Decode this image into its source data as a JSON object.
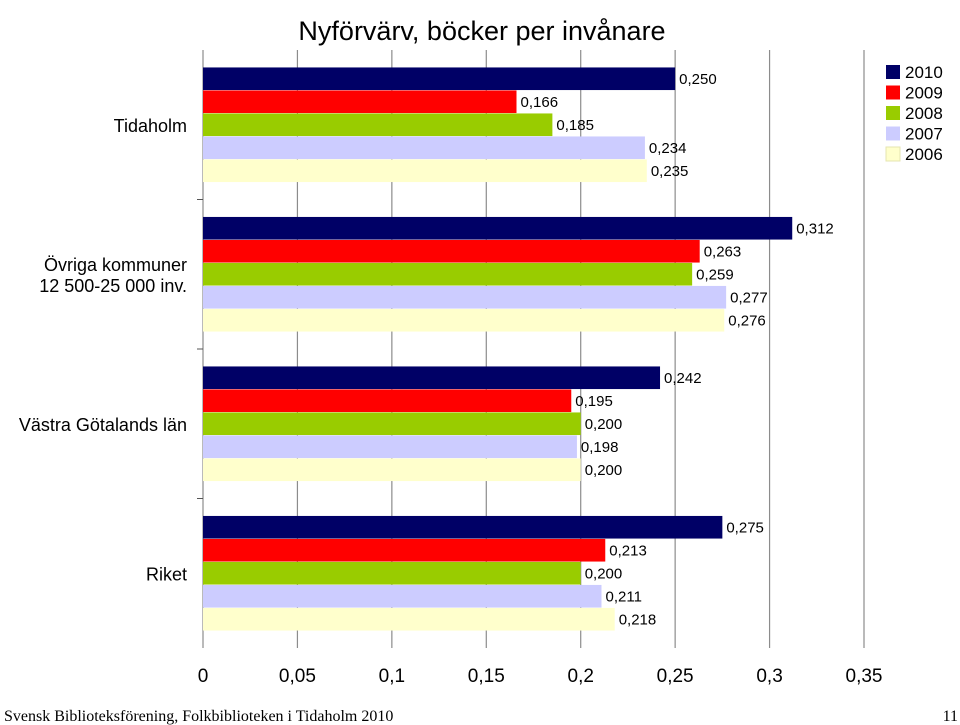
{
  "chart_data": {
    "type": "bar",
    "orientation": "horizontal",
    "title": "Nyförvärv, böcker per invånare",
    "categories": [
      "Tidaholm",
      "Övriga kommuner 12 500-25 000 inv.",
      "Västra Götalands län",
      "Riket"
    ],
    "category_lines": [
      [
        "Tidaholm"
      ],
      [
        "Övriga kommuner",
        "12 500-25 000 inv."
      ],
      [
        "Västra Götalands län"
      ],
      [
        "Riket"
      ]
    ],
    "series": [
      {
        "name": "2010",
        "color": "#000066",
        "values": [
          0.25,
          0.312,
          0.242,
          0.275
        ],
        "labels": [
          "0,250",
          "0,312",
          "0,242",
          "0,275"
        ]
      },
      {
        "name": "2009",
        "color": "#FF0000",
        "values": [
          0.166,
          0.263,
          0.195,
          0.213
        ],
        "labels": [
          "0,166",
          "0,263",
          "0,195",
          "0,213"
        ]
      },
      {
        "name": "2008",
        "color": "#99CC00",
        "values": [
          0.185,
          0.259,
          0.2,
          0.2
        ],
        "labels": [
          "0,185",
          "0,259",
          "0,200",
          "0,200"
        ]
      },
      {
        "name": "2007",
        "color": "#CCCCFF",
        "values": [
          0.234,
          0.277,
          0.198,
          0.211
        ],
        "labels": [
          "0,234",
          "0,277",
          "0,198",
          "0,211"
        ]
      },
      {
        "name": "2006",
        "color": "#FFFFCC",
        "values": [
          0.235,
          0.276,
          0.2,
          0.218
        ],
        "labels": [
          "0,235",
          "0,276",
          "0,200",
          "0,218"
        ]
      }
    ],
    "xlim": [
      0,
      0.35
    ],
    "xticks": [
      0,
      0.05,
      0.1,
      0.15,
      0.2,
      0.25,
      0.3,
      0.35
    ],
    "xtick_labels": [
      "0",
      "0,05",
      "0,1",
      "0,15",
      "0,2",
      "0,25",
      "0,3",
      "0,35"
    ],
    "grid": "vertical",
    "legend": "top-right"
  },
  "footer": {
    "left_text": "Svensk Biblioteksförening, Folkbiblioteken i Tidaholm 2010",
    "page_number": "11"
  }
}
